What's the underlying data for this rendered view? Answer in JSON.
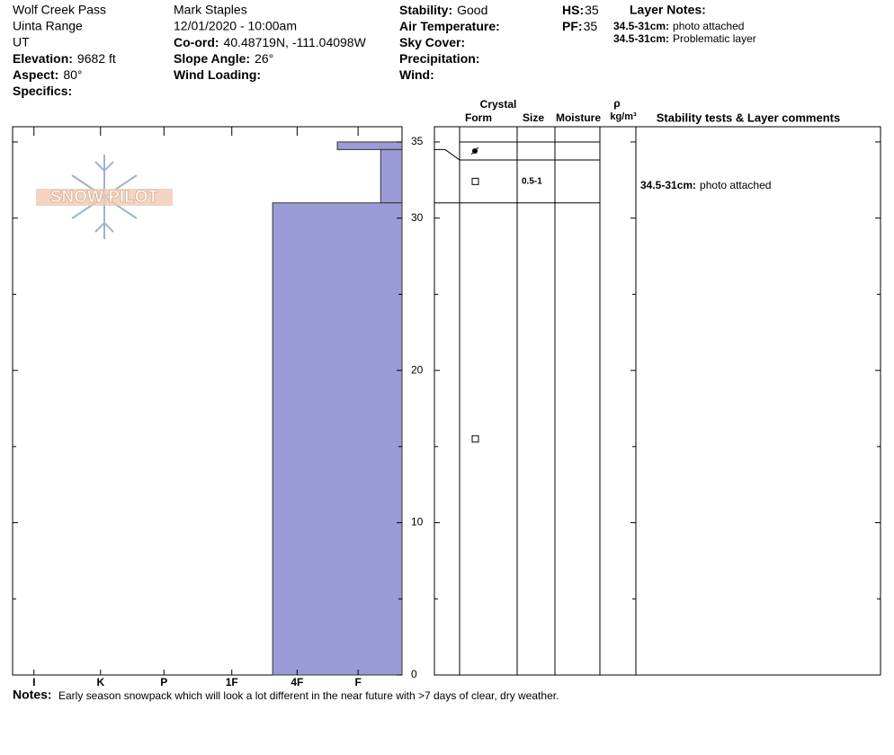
{
  "header": {
    "lines": [
      "Wolf Creek Pass",
      "Uinta Range",
      "UT",
      "Mark Staples",
      "12/01/2020 - 10:00am"
    ],
    "fields": [
      {
        "label": "Elevation:",
        "value": "9682 ft"
      },
      {
        "label": "Aspect:",
        "value": "80°"
      },
      {
        "label": "Specifics:"
      },
      {
        "label": "Co-ord:",
        "value": "40.48719N, -111.04098W"
      },
      {
        "label": "Slope Angle:",
        "value": "26°"
      },
      {
        "label": "Wind Loading:"
      },
      {
        "label": "Stability:",
        "value": "Good"
      },
      {
        "label": "Air Temperature:"
      },
      {
        "label": "Sky Cover:"
      },
      {
        "label": "Precipitation:"
      },
      {
        "label": "Wind:"
      },
      {
        "label": "HS:",
        "value": "35"
      },
      {
        "label": "PF:",
        "value": "35"
      }
    ],
    "layer_notes": {
      "title": "Layer Notes:",
      "items": [
        {
          "range": "34.5-31cm:",
          "text": "photo attached"
        },
        {
          "range": "34.5-31cm:",
          "text": "Problematic layer"
        }
      ]
    }
  },
  "logo": "SNOW PILOT",
  "hardness_profile": {
    "ylim": [
      0,
      36
    ],
    "yticks": [
      0,
      10,
      20,
      30,
      35
    ],
    "yticks_minor": [
      5,
      15,
      25
    ],
    "xlim": [
      0,
      6.2
    ],
    "xticks": [
      {
        "value": 5.86,
        "label": "I"
      },
      {
        "value": 4.8,
        "label": "K"
      },
      {
        "value": 3.79,
        "label": "P"
      },
      {
        "value": 2.71,
        "label": "1F"
      },
      {
        "value": 1.67,
        "label": "4F"
      },
      {
        "value": 0.7,
        "label": "F"
      }
    ],
    "color": "#9b9bd7",
    "layers": [
      {
        "top": 35,
        "bottom": 34.5,
        "hardness": 1.03
      },
      {
        "top": 34.5,
        "bottom": 31,
        "hardness": 0.34
      },
      {
        "top": 31,
        "bottom": 0,
        "hardness": 2.06
      }
    ]
  },
  "layer_table": {
    "headers": {
      "crystal": "Crystal",
      "form": "Form",
      "size": "Size",
      "moisture": "Moisture",
      "rho": "ρ",
      "density": "kg/m³",
      "comments": "Stability tests & Layer comments"
    },
    "rows": [
      {},
      {
        "size": "0.5-1",
        "comment": {
          "range": "34.5-31cm:",
          "text": "photo attached"
        }
      },
      {}
    ]
  },
  "notes": {
    "label": "Notes:",
    "text": "Early season snowpack which will look a lot different in the near future with >7 days of clear, dry weather."
  }
}
